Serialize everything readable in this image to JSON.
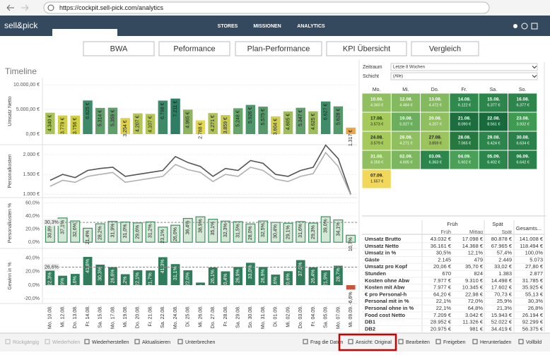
{
  "browser": {
    "url": "https://cockpit.sell-pick.com/analytics"
  },
  "nav": {
    "logo": "sell&pick",
    "items": [
      "STORES",
      "MISSIONEN",
      "ANALYTICS"
    ]
  },
  "tabs": [
    "BWA",
    "Peformance",
    "Plan-Performance",
    "KPI Übersicht",
    "Vergleich"
  ],
  "timeline": {
    "title": "Timeline",
    "categories": [
      "Mo. 10.08.",
      "Mi. 12.08.",
      "Do. 13.08.",
      "Fr. 14.08.",
      "Sa. 15.08.",
      "Mo. 17.08.",
      "Mi. 19.08.",
      "Do. 20.08.",
      "Fr. 21.08.",
      "Sa. 22.08.",
      "Mo. 24.08.",
      "Di. 25.08.",
      "Mi. 26.08.",
      "Do. 27.08.",
      "Fr. 28.08.",
      "Sa. 29.08.",
      "So. 30.08.",
      "Mo. 31.08.",
      "Di. 01.09.",
      "Mi. 02.09.",
      "Do. 03.09.",
      "Fr. 04.09.",
      "Sa. 05.09.",
      "Mo. 07.09.",
      "Mi. 09.09."
    ],
    "umsatz": {
      "label": "Umsatz Netto",
      "ylim": [
        0,
        10600
      ],
      "yticks": [
        {
          "value": 0,
          "label": "0,00 €"
        },
        {
          "value": 5000,
          "label": "5.000,00 €"
        },
        {
          "value": 10000,
          "label": "10.000,00 €"
        }
      ],
      "values": [
        4340,
        3779,
        3756,
        6825,
        5314,
        5359,
        3254,
        4207,
        4107,
        6798,
        7211,
        4965,
        2788,
        4271,
        3859,
        5248,
        5926,
        5575,
        3604,
        4605,
        5347,
        4625,
        6627,
        5628,
        1317
      ],
      "value_labels": [
        "4.340 €",
        "3.779 €",
        "3.756 €",
        "6.825 €",
        "5.314 €",
        "5.359 €",
        "3.254 €",
        "4.207 €",
        "4.107 €",
        "6.798 €",
        "7.211 €",
        "4.965 €",
        "2.788 €",
        "4.271 €",
        "3.859 €",
        "5.248 €",
        "5.926 €",
        "5.575 €",
        "3.604 €",
        "4.605 €",
        "5.347 €",
        "4.625 €",
        "6.627 €",
        "5.628 €",
        "1.317 €"
      ],
      "colors": [
        "#a9c25a",
        "#cfcf4a",
        "#cfcf4a",
        "#3e8a68",
        "#5f9f6a",
        "#5f9f6a",
        "#ddd24a",
        "#b5c556",
        "#b5c556",
        "#3e8a68",
        "#2f7d62",
        "#8db45e",
        "#e6d84c",
        "#b0c358",
        "#c8cc4e",
        "#66a46a",
        "#4f966a",
        "#57996a",
        "#d2cf4b",
        "#9fbd5c",
        "#5f9f6a",
        "#9fbd5c",
        "#418c68",
        "#55986a",
        "#e9a64a"
      ]
    },
    "personalkosten": {
      "label": "Personalkosten",
      "ylim": [
        950,
        2250
      ],
      "yticks": [
        {
          "value": 1000,
          "label": "1.000 €"
        },
        {
          "value": 1500,
          "label": "1.500 €"
        },
        {
          "value": 2000,
          "label": "2.000 €"
        }
      ],
      "series": [
        {
          "color": "#555555",
          "values": [
            1350,
            1500,
            1420,
            1600,
            1650,
            1680,
            1450,
            1500,
            1550,
            1600,
            1950,
            1800,
            1700,
            1450,
            1650,
            1600,
            1850,
            1780,
            1500,
            1450,
            1600,
            1680,
            2240,
            1900,
            1000
          ]
        },
        {
          "color": "#b0b0b0",
          "values": [
            1200,
            1350,
            1300,
            1450,
            1500,
            1550,
            1300,
            1350,
            1400,
            1450,
            1750,
            1620,
            1550,
            1320,
            1500,
            1450,
            1680,
            1600,
            1380,
            1320,
            1450,
            1520,
            2050,
            1700,
            980
          ]
        }
      ]
    },
    "personal_pct": {
      "label": "Personalkosten %",
      "ylim": [
        -3,
        65
      ],
      "yticks": [
        {
          "value": 0,
          "label": "0,0%"
        },
        {
          "value": 20,
          "label": "20,0%"
        },
        {
          "value": 40,
          "label": "40,0%"
        },
        {
          "value": 60,
          "label": "60,0%"
        }
      ],
      "reference": {
        "value": 30.3,
        "label": "30,3%"
      },
      "values": [
        30.8,
        37.1,
        32.6,
        21.4,
        28.2,
        31.9,
        31.0,
        29.6,
        31.2,
        23.1,
        26.0,
        36.4,
        38.9,
        35.1,
        32.3,
        31.5,
        28.0,
        32.5,
        30.4,
        29.1,
        31.6,
        29.3,
        39.0,
        34.1,
        10.7
      ],
      "value_labels": [
        "30,8%",
        "37,1%",
        "32,6%",
        "21,4%",
        "28,2%",
        "31,9%",
        "31,0%",
        "29,6%",
        "31,2%",
        "23,1%",
        "26,0%",
        "36,4%",
        "38,9%",
        "35,1%",
        "32,3%",
        "31,5%",
        "28,0%",
        "32,5%",
        "30,4%",
        "29,1%",
        "31,6%",
        "29,3%",
        "39,0%",
        "34,1%",
        "10,7%"
      ],
      "color": "#d4e8d6",
      "stroke": "#3f8f63"
    },
    "gewinn": {
      "label": "Gewinn in %",
      "ylim": [
        -25,
        48
      ],
      "yticks": [
        {
          "value": -20,
          "label": "-20,0%"
        },
        {
          "value": 0,
          "label": "0,0%"
        },
        {
          "value": 20,
          "label": "20,0%"
        },
        {
          "value": 40,
          "label": "40,0%"
        }
      ],
      "reference": {
        "value": 26.6,
        "label": "26,6%"
      },
      "values": [
        22.3,
        13.9,
        16.6,
        41.8,
        30.3,
        26.6,
        16.2,
        22.1,
        21.7,
        41.3,
        31.1,
        22.0,
        3.8,
        26.1,
        20.4,
        26.9,
        33.0,
        26.9,
        15.6,
        20.6,
        37.0,
        26.4,
        21.9,
        28.7,
        -6.6
      ],
      "value_labels": [
        "22,3%",
        "13,9%",
        "16,6%",
        "41,8%",
        "30,3%",
        "26,6%",
        "16,2%",
        "22,1%",
        "21,7%",
        "41,3%",
        "31,1%",
        "22,0%",
        "3,8%",
        "26,1%",
        "20,4%",
        "26,9%",
        "33,0%",
        "26,9%",
        "15,6%",
        "20,6%",
        "37,0%",
        "26,4%",
        "21,9%",
        "28,7%",
        "-6,6%"
      ],
      "color": "#2f7d5a",
      "negative_color": "#c8553d"
    }
  },
  "filters": [
    {
      "label": "Zeitraum",
      "value": "Letzte 8 Wochen"
    },
    {
      "label": "Schicht",
      "value": "(Alle)"
    }
  ],
  "calendar": {
    "headers": [
      "Mo.",
      "Mi.",
      "Do.",
      "Fr.",
      "Sa.",
      "So."
    ],
    "rows": [
      [
        {
          "date": "10.08.",
          "value": "4.340 €",
          "color": "#8fbf5e"
        },
        {
          "date": "12.08.",
          "value": "4.484 €",
          "color": "#84ba5f"
        },
        {
          "date": "13.08.",
          "value": "4.472 €",
          "color": "#84ba5f"
        },
        {
          "date": "14.08.",
          "value": "6.122 €",
          "color": "#2f8a4e"
        },
        {
          "date": "15.08.",
          "value": "6.377 €",
          "color": "#2c864c"
        },
        {
          "date": "16.08.",
          "value": "6.377 €",
          "color": "#2c864c"
        }
      ],
      [
        {
          "date": "17.08.",
          "value": "3.573 €",
          "color": "#a6c95c"
        },
        {
          "date": "19.08.",
          "value": "5.027 €",
          "color": "#6cae5d"
        },
        {
          "date": "20.08.",
          "value": "4.207 €",
          "color": "#8fbf5e"
        },
        {
          "date": "21.08.",
          "value": "8.090 €",
          "color": "#1c6e3f"
        },
        {
          "date": "22.08.",
          "value": "8.561 €",
          "color": "#186a3c"
        },
        {
          "date": "23.08.",
          "value": "3.932 €",
          "color": "#3f9a52"
        }
      ],
      [
        {
          "date": "24.08.",
          "value": "3.579 €",
          "color": "#a6c95c"
        },
        {
          "date": "26.08.",
          "value": "4.271 €",
          "color": "#8fbf5e"
        },
        {
          "date": "27.08.",
          "value": "3.859 €",
          "color": "#9bc45d"
        },
        {
          "date": "28.08.",
          "value": "7.065 €",
          "color": "#25793f"
        },
        {
          "date": "29.08.",
          "value": "6.424 €",
          "color": "#2c864c"
        },
        {
          "date": "30.08.",
          "value": "6.634 €",
          "color": "#2a824a"
        }
      ],
      [
        {
          "date": "31.08.",
          "value": "4.358 €",
          "color": "#8fbf5e"
        },
        {
          "date": "02.09.",
          "value": "4.605 €",
          "color": "#7cb65e"
        },
        {
          "date": "03.09.",
          "value": "6.363 €",
          "color": "#2c864c"
        },
        {
          "date": "04.09.",
          "value": "5.602 €",
          "color": "#4aa056"
        },
        {
          "date": "05.09.",
          "value": "6.402 €",
          "color": "#2c864c"
        },
        {
          "date": "06.09.",
          "value": "6.642 €",
          "color": "#2a824a"
        }
      ],
      [
        {
          "date": "07.09.",
          "value": "1.557 €",
          "color": "#f1d75a"
        }
      ]
    ]
  },
  "table": {
    "group_headers": [
      "Früh",
      "Spät",
      "Gesamts..."
    ],
    "sub_headers": [
      "Früh",
      "Mittag",
      "Spät"
    ],
    "rows": [
      [
        "Umsatz Brutto",
        "43.032 €",
        "17.098 €",
        "80.878 €",
        "141.008 €"
      ],
      [
        "Umsatz Netto",
        "36.161 €",
        "14.368 €",
        "67.965 €",
        "118.494 €"
      ],
      [
        "Umsatz in %",
        "30,5%",
        "12,1%",
        "57,4%",
        "100,0%"
      ],
      [
        "Gäste",
        "2.145",
        "479",
        "2.449",
        "5.073"
      ],
      [
        "Umsatz pro Kopf",
        "20,06 €",
        "35,70 €",
        "33,02 €",
        "27,80 €"
      ],
      [
        "Stunden",
        "670",
        "824",
        "1.383",
        "2.877"
      ],
      [
        "Kosten ohne Abw",
        "7.977 €",
        "9.310 €",
        "14.498 €",
        "31.785 €"
      ],
      [
        "Kosten mit Abw",
        "7.977 €",
        "10.345 €",
        "17.602 €",
        "35.925 €"
      ],
      [
        "€ pro Personal-h",
        "64,20 €",
        "22,98 €",
        "70,73 €",
        "55,13 €"
      ],
      [
        "Personal mit in %",
        "22,1%",
        "72,0%",
        "25,9%",
        "30,3%"
      ],
      [
        "Personal ohne in %",
        "22,1%",
        "64,8%",
        "21,3%",
        "26,8%"
      ],
      [
        "Food cost Netto",
        "7.209 €",
        "3.042 €",
        "15.943 €",
        "26.194 €"
      ],
      [
        "DB1",
        "28.952 €",
        "11.326 €",
        "52.022 €",
        "92.299 €"
      ],
      [
        "DB2",
        "20.975 €",
        "981 €",
        "34.419 €",
        "56.375 €"
      ]
    ]
  },
  "toolbar": [
    "Rückgängig",
    "Wiederholen",
    "Wiederherstellen",
    "Aktualisieren",
    "Unterbrechen",
    "Frag die Daten",
    "Ansicht: Original",
    "Bearbeiten",
    "Freigeben",
    "Herunterladen",
    "Vollbild"
  ]
}
